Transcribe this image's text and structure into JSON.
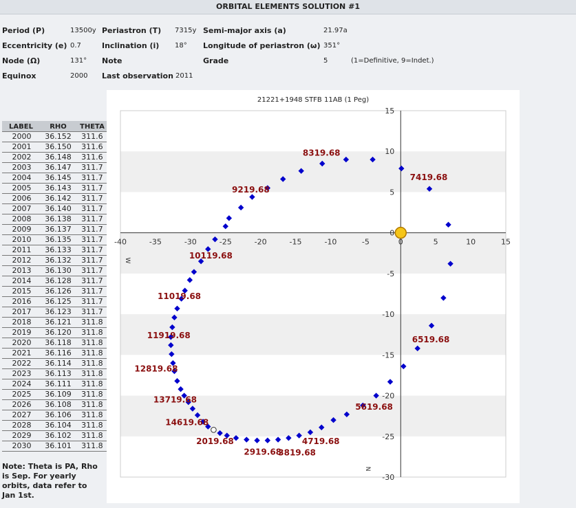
{
  "page_title": "ORBITAL ELEMENTS SOLUTION #1",
  "elements": {
    "period_label": "Period (P)",
    "period_value": "13500y",
    "ecc_label": "Eccentricity (e)",
    "ecc_value": "0.7",
    "node_label": "Node (Ω)",
    "node_value": "131°",
    "equinox_label": "Equinox",
    "equinox_value": "2000",
    "peri_label": "Periastron (T)",
    "peri_value": "7315y",
    "incl_label": "Inclination (i)",
    "incl_value": "18°",
    "note_label": "Note",
    "lastobs_label": "Last observation",
    "lastobs_value": "2011",
    "sma_label": "Semi-major axis (a)",
    "sma_value": "21.97a",
    "long_label": "Longitude of periastron (ω)",
    "long_value": "351°",
    "grade_label": "Grade",
    "grade_value": "5",
    "grade_note": "(1=Definitive, 9=Indet.)"
  },
  "ephemeris": {
    "headers": [
      "LABEL",
      "RHO",
      "THETA"
    ],
    "rows": [
      [
        "2000",
        "36.152",
        "311.6"
      ],
      [
        "2001",
        "36.150",
        "311.6"
      ],
      [
        "2002",
        "36.148",
        "311.6"
      ],
      [
        "2003",
        "36.147",
        "311.7"
      ],
      [
        "2004",
        "36.145",
        "311.7"
      ],
      [
        "2005",
        "36.143",
        "311.7"
      ],
      [
        "2006",
        "36.142",
        "311.7"
      ],
      [
        "2007",
        "36.140",
        "311.7"
      ],
      [
        "2008",
        "36.138",
        "311.7"
      ],
      [
        "2009",
        "36.137",
        "311.7"
      ],
      [
        "2010",
        "36.135",
        "311.7"
      ],
      [
        "2011",
        "36.133",
        "311.7"
      ],
      [
        "2012",
        "36.132",
        "311.7"
      ],
      [
        "2013",
        "36.130",
        "311.7"
      ],
      [
        "2014",
        "36.128",
        "311.7"
      ],
      [
        "2015",
        "36.126",
        "311.7"
      ],
      [
        "2016",
        "36.125",
        "311.7"
      ],
      [
        "2017",
        "36.123",
        "311.7"
      ],
      [
        "2018",
        "36.121",
        "311.8"
      ],
      [
        "2019",
        "36.120",
        "311.8"
      ],
      [
        "2020",
        "36.118",
        "311.8"
      ],
      [
        "2021",
        "36.116",
        "311.8"
      ],
      [
        "2022",
        "36.114",
        "311.8"
      ],
      [
        "2023",
        "36.113",
        "311.8"
      ],
      [
        "2024",
        "36.111",
        "311.8"
      ],
      [
        "2025",
        "36.109",
        "311.8"
      ],
      [
        "2026",
        "36.108",
        "311.8"
      ],
      [
        "2027",
        "36.106",
        "311.8"
      ],
      [
        "2028",
        "36.104",
        "311.8"
      ],
      [
        "2029",
        "36.102",
        "311.8"
      ],
      [
        "2030",
        "36.101",
        "311.8"
      ]
    ],
    "note": "Note: Theta is PA, Rho is Sep. For yearly orbits, data refer to Jan 1st."
  },
  "chart_data": {
    "type": "scatter",
    "title": "21221+1948 STFB 11AB (1 Peg)",
    "xlim": [
      -40,
      15
    ],
    "ylim": [
      -30,
      15
    ],
    "x_ticks": [
      "-40",
      "-35",
      "-30",
      "-25",
      "-20",
      "-15",
      "-10",
      "-5",
      "0",
      "5",
      "10",
      "15"
    ],
    "y_ticks": [
      "15",
      "10",
      "5",
      "0",
      "-5",
      "-10",
      "-15",
      "-20",
      "-25",
      "-30"
    ],
    "west_label": "W",
    "north_label": "N",
    "primary_star": [
      0,
      0
    ],
    "colors": {
      "points": "#0000cc",
      "labels": "#8b1010",
      "primary": "#f5c518",
      "band": "#efefef"
    },
    "orbit_points": [
      [
        0.1,
        7.9
      ],
      [
        4.1,
        5.4
      ],
      [
        6.8,
        1.0
      ],
      [
        7.1,
        -3.8
      ],
      [
        6.1,
        -8.0
      ],
      [
        4.4,
        -11.4
      ],
      [
        2.4,
        -14.2
      ],
      [
        0.4,
        -16.4
      ],
      [
        -1.5,
        -18.3
      ],
      [
        -3.5,
        -20.0
      ],
      [
        -5.4,
        -21.2
      ],
      [
        -7.7,
        -22.3
      ],
      [
        -9.6,
        -23.0
      ],
      [
        -11.3,
        -23.9
      ],
      [
        -12.9,
        -24.5
      ],
      [
        -14.5,
        -24.9
      ],
      [
        -16.0,
        -25.2
      ],
      [
        -17.5,
        -25.4
      ],
      [
        -19.0,
        -25.5
      ],
      [
        -20.5,
        -25.5
      ],
      [
        -22.0,
        -25.4
      ],
      [
        -23.5,
        -25.2
      ],
      [
        -24.8,
        -24.9
      ],
      [
        -25.8,
        -24.6
      ],
      [
        -26.7,
        -24.2
      ],
      [
        -27.5,
        -23.8
      ],
      [
        -28.2,
        -23.2
      ],
      [
        -29.0,
        -22.4
      ],
      [
        -29.7,
        -21.6
      ],
      [
        -30.3,
        -20.8
      ],
      [
        -30.9,
        -20.0
      ],
      [
        -31.4,
        -19.2
      ],
      [
        -31.9,
        -18.2
      ],
      [
        -32.3,
        -17.0
      ],
      [
        -32.5,
        -16.0
      ],
      [
        -32.7,
        -14.9
      ],
      [
        -32.8,
        -13.8
      ],
      [
        -32.8,
        -12.8
      ],
      [
        -32.6,
        -11.6
      ],
      [
        -32.3,
        -10.4
      ],
      [
        -31.9,
        -9.3
      ],
      [
        -31.3,
        -8.1
      ],
      [
        -30.8,
        -7.1
      ],
      [
        -30.1,
        -5.8
      ],
      [
        -29.5,
        -4.8
      ],
      [
        -28.5,
        -3.5
      ],
      [
        -27.5,
        -2.0
      ],
      [
        -26.5,
        -0.8
      ],
      [
        -25.0,
        0.8
      ],
      [
        -24.5,
        1.8
      ],
      [
        -22.8,
        3.1
      ],
      [
        -21.2,
        4.4
      ],
      [
        -19.0,
        5.5
      ],
      [
        -16.8,
        6.6
      ],
      [
        -14.2,
        7.6
      ],
      [
        -11.2,
        8.5
      ],
      [
        -7.8,
        9.0
      ],
      [
        -4.0,
        9.0
      ]
    ],
    "open_point": [
      -26.7,
      -24.2
    ],
    "labels": [
      {
        "text": "8319.68",
        "x": -11.3,
        "y": 9.8
      },
      {
        "text": "7419.68",
        "x": 4.0,
        "y": 6.8
      },
      {
        "text": "9219.68",
        "x": -21.4,
        "y": 5.3
      },
      {
        "text": "10119.68",
        "x": -27.1,
        "y": -2.8
      },
      {
        "text": "11019.68",
        "x": -31.6,
        "y": -7.8
      },
      {
        "text": "11919.68",
        "x": -33.1,
        "y": -12.6
      },
      {
        "text": "6519.68",
        "x": 4.3,
        "y": -13.1
      },
      {
        "text": "12819.68",
        "x": -34.9,
        "y": -16.7
      },
      {
        "text": "13719.68",
        "x": -32.2,
        "y": -20.5
      },
      {
        "text": "5619.68",
        "x": -3.8,
        "y": -21.4
      },
      {
        "text": "14619.68",
        "x": -30.5,
        "y": -23.3
      },
      {
        "text": "4719.68",
        "x": -11.4,
        "y": -25.6
      },
      {
        "text": "2019.68",
        "x": -26.5,
        "y": -25.6
      },
      {
        "text": "2919.68",
        "x": -19.7,
        "y": -26.9
      },
      {
        "text": "3819.68",
        "x": -14.8,
        "y": -27.0
      }
    ]
  }
}
